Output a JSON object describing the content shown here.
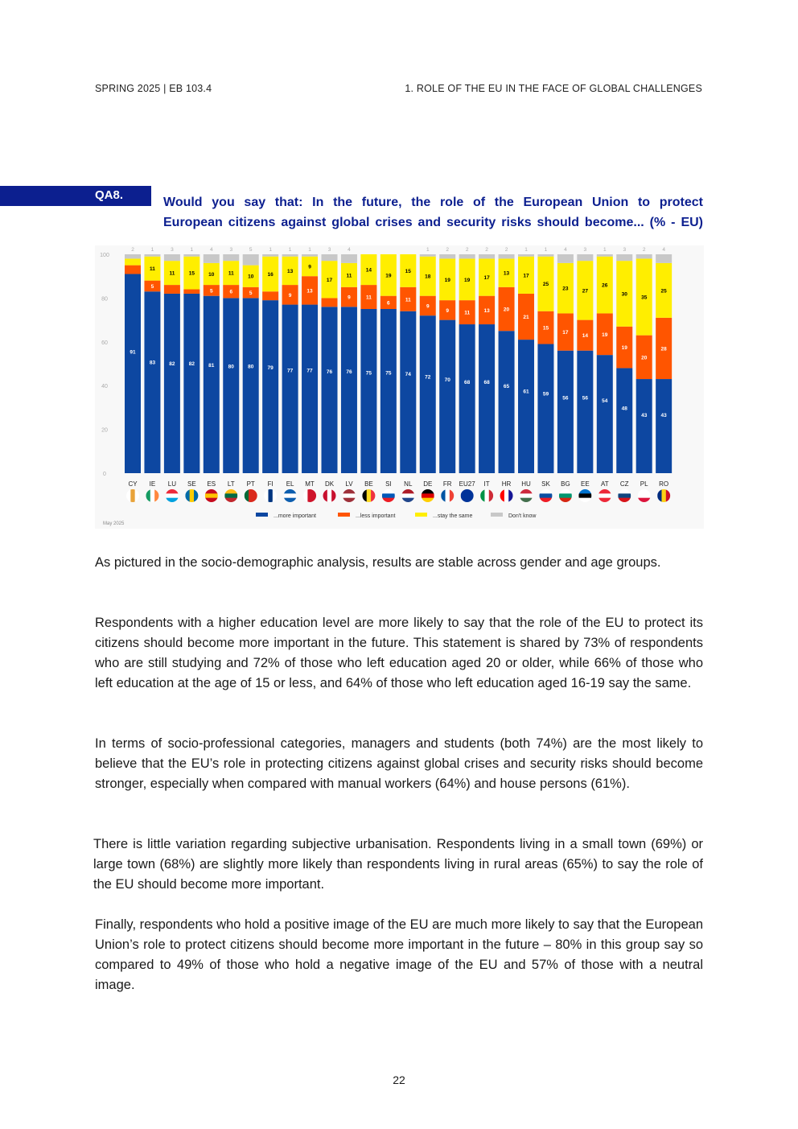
{
  "header": {
    "left": "SPRING 2025 | EB 103.4",
    "right": "1. ROLE OF THE EU IN THE FACE OF GLOBAL CHALLENGES"
  },
  "question": {
    "code": "QA8.",
    "line1": "Would you say that: In the future, the role of the European Union to protect",
    "line2": "European citizens against global crises and security risks should become... (% - EU)"
  },
  "chart_data": {
    "type": "bar",
    "stacked": true,
    "title": "Would you say that: In the future, the role of the European Union to protect European citizens against global crises and security risks should become... (% - EU)",
    "ylim": [
      0,
      100
    ],
    "yticks": [
      "0",
      "20",
      "40",
      "60",
      "80",
      "100"
    ],
    "categories": [
      "CY",
      "IE",
      "LU",
      "SE",
      "ES",
      "LT",
      "PT",
      "FI",
      "EL",
      "MT",
      "DK",
      "LV",
      "BE",
      "SI",
      "NL",
      "DE",
      "FR",
      "EU27",
      "IT",
      "HR",
      "HU",
      "SK",
      "BG",
      "EE",
      "AT",
      "CZ",
      "PL",
      "RO"
    ],
    "series": [
      {
        "name": "...more important",
        "color": "#0d47a1",
        "values": [
          91,
          83,
          82,
          82,
          81,
          80,
          80,
          79,
          77,
          77,
          76,
          76,
          75,
          75,
          74,
          72,
          70,
          68,
          68,
          65,
          61,
          59,
          56,
          56,
          54,
          48,
          43,
          43
        ]
      },
      {
        "name": "...less important",
        "color": "#ff5500",
        "values": [
          4,
          5,
          4,
          2,
          5,
          6,
          5,
          4,
          9,
          13,
          4,
          9,
          11,
          6,
          11,
          9,
          9,
          11,
          13,
          20,
          21,
          15,
          17,
          14,
          19,
          19,
          20,
          28
        ]
      },
      {
        "name": "...stay the same",
        "color": "#ffee00",
        "values": [
          3,
          11,
          11,
          15,
          10,
          11,
          10,
          16,
          13,
          9,
          17,
          11,
          14,
          19,
          15,
          18,
          19,
          19,
          17,
          13,
          17,
          25,
          23,
          27,
          26,
          30,
          35,
          25
        ]
      },
      {
        "name": "Don't know",
        "color": "#c8c8c8",
        "values": [
          2,
          1,
          3,
          1,
          4,
          3,
          5,
          1,
          1,
          1,
          3,
          4,
          0,
          0,
          0,
          1,
          2,
          2,
          2,
          2,
          1,
          1,
          4,
          3,
          1,
          3,
          2,
          4
        ]
      }
    ],
    "note": "May 2025"
  },
  "flags": {
    "CY": [
      "#ffffff",
      "#e8a33a",
      "#ffffff"
    ],
    "IE": [
      "#169b62",
      "#ffffff",
      "#ff883e"
    ],
    "LU": [
      "#ed2939",
      "#ffffff",
      "#00a1de"
    ],
    "SE": [
      "#006aa7",
      "#fecc00",
      "#006aa7"
    ],
    "ES": [
      "#c60b1e",
      "#ffc400",
      "#c60b1e"
    ],
    "LT": [
      "#fdb913",
      "#006a44",
      "#c1272d"
    ],
    "PT": [
      "#046a38",
      "#da291c",
      "#da291c"
    ],
    "FI": [
      "#ffffff",
      "#003580",
      "#ffffff"
    ],
    "EL": [
      "#0d5eaf",
      "#ffffff",
      "#0d5eaf"
    ],
    "MT": [
      "#ffffff",
      "#cf142b",
      "#cf142b"
    ],
    "DK": [
      "#c8102e",
      "#ffffff",
      "#c8102e"
    ],
    "LV": [
      "#9e3039",
      "#ffffff",
      "#9e3039"
    ],
    "BE": [
      "#000000",
      "#fdda24",
      "#ef3340"
    ],
    "SI": [
      "#ffffff",
      "#0057b8",
      "#ed1c24"
    ],
    "NL": [
      "#ae1c28",
      "#ffffff",
      "#21468b"
    ],
    "DE": [
      "#000000",
      "#dd0000",
      "#ffce00"
    ],
    "FR": [
      "#0055a4",
      "#ffffff",
      "#ef4135"
    ],
    "EU27": [
      "#003399",
      "#003399",
      "#003399"
    ],
    "IT": [
      "#009246",
      "#ffffff",
      "#ce2b37"
    ],
    "HR": [
      "#ff0000",
      "#ffffff",
      "#171796"
    ],
    "HU": [
      "#cd2a3e",
      "#ffffff",
      "#436f4d"
    ],
    "SK": [
      "#ffffff",
      "#0b4ea2",
      "#ee1c25"
    ],
    "BG": [
      "#ffffff",
      "#00966e",
      "#d62612"
    ],
    "EE": [
      "#0072ce",
      "#000000",
      "#ffffff"
    ],
    "AT": [
      "#ed2939",
      "#ffffff",
      "#ed2939"
    ],
    "CZ": [
      "#ffffff",
      "#11457e",
      "#d7141a"
    ],
    "PL": [
      "#ffffff",
      "#ffffff",
      "#dc143c"
    ],
    "RO": [
      "#002b7f",
      "#fcd116",
      "#ce1126"
    ]
  },
  "paragraphs": [
    "As pictured in the socio-demographic analysis, results are stable across gender and age groups.",
    "Respondents with a higher education level are more likely to say that the role of the EU to protect its citizens should become more important in the future. This statement is shared by 73% of respondents who are still studying and 72% of those who left education aged 20 or older, while 66% of those who left education at the age of 15 or less, and 64% of those who left education aged 16-19 say the same.",
    "In terms of socio-professional categories, managers and students (both 74%) are the most likely to believe that the EU’s role in protecting citizens against global crises and security risks should become stronger, especially when compared with manual workers (64%) and house persons (61%).",
    "There is little variation regarding subjective urbanisation. Respondents living in a small town (69%) or large town (68%) are slightly more likely than respondents living in rural areas (65%) to say the role of the EU should become more important.",
    "Finally, respondents who hold a positive image of the EU are much more likely to say that the European Union’s role to protect citizens should become more important in the future – 80% in this group say so compared to 49% of those who hold a negative image of the EU and 57% of those with a neutral image."
  ],
  "page_number": "22"
}
